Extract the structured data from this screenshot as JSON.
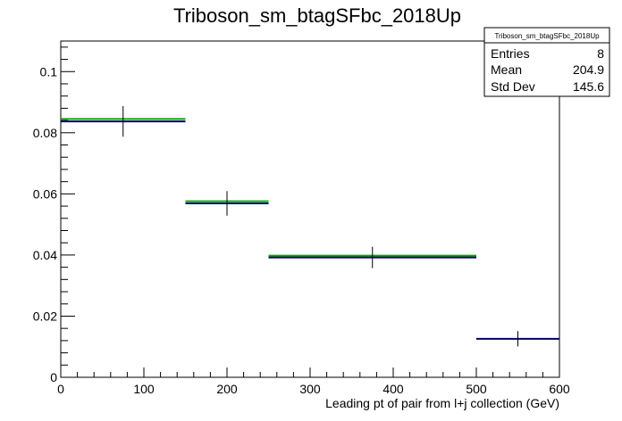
{
  "chart_data": {
    "type": "histogram",
    "title": "Triboson_sm_btagSFbc_2018Up",
    "xlabel": "Leading pt of pair from l+j collection (GeV)",
    "ylabel": "",
    "xlim": [
      0,
      600
    ],
    "ylim": [
      0,
      0.11
    ],
    "x_ticks": [
      0,
      100,
      200,
      300,
      400,
      500,
      600
    ],
    "x_tick_labels": [
      "0",
      "100",
      "200",
      "300",
      "400",
      "500",
      "600"
    ],
    "y_ticks": [
      0,
      0.02,
      0.04,
      0.06,
      0.08,
      0.1
    ],
    "y_tick_labels": [
      "0",
      "0.02",
      "0.04",
      "0.06",
      "0.08",
      "0.1"
    ],
    "grid": false,
    "bins": [
      {
        "low": 0,
        "high": 150,
        "value": 0.0837,
        "err": 0.005,
        "green": 0.0845
      },
      {
        "low": 150,
        "high": 250,
        "value": 0.0569,
        "err": 0.004,
        "green": 0.0576
      },
      {
        "low": 250,
        "high": 500,
        "value": 0.0392,
        "err": 0.0035,
        "green": 0.0398
      },
      {
        "low": 500,
        "high": 600,
        "value": 0.0126,
        "err": 0.0025,
        "green": null
      }
    ],
    "colors": {
      "main": "#000066",
      "green": "#00aa00",
      "error": "#000000"
    },
    "stats": {
      "title": "Triboson_sm_btagSFbc_2018Up",
      "rows": [
        {
          "label": "Entries",
          "value": "8"
        },
        {
          "label": "Mean",
          "value": "204.9"
        },
        {
          "label": "Std Dev",
          "value": "145.6"
        }
      ],
      "position": "top-right"
    }
  }
}
